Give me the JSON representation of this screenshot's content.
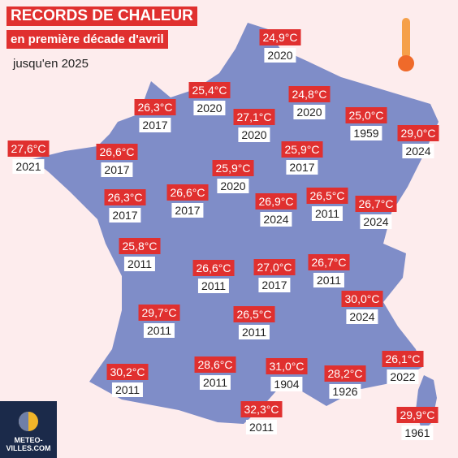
{
  "header": {
    "title": "RECORDS DE CHALEUR",
    "subtitle": "en première décade d'avril",
    "note": "jusqu'en 2025"
  },
  "records": [
    {
      "temp": "24,9°C",
      "year": "2020"
    },
    {
      "temp": "25,4°C",
      "year": "2020"
    },
    {
      "temp": "24,8°C",
      "year": "2020"
    },
    {
      "temp": "26,3°C",
      "year": "2017"
    },
    {
      "temp": "27,1°C",
      "year": "2020"
    },
    {
      "temp": "25,0°C",
      "year": "1959"
    },
    {
      "temp": "29,0°C",
      "year": "2024"
    },
    {
      "temp": "27,6°C",
      "year": "2021"
    },
    {
      "temp": "26,6°C",
      "year": "2017"
    },
    {
      "temp": "25,9°C",
      "year": "2017"
    },
    {
      "temp": "25,9°C",
      "year": "2020"
    },
    {
      "temp": "26,3°C",
      "year": "2017"
    },
    {
      "temp": "26,6°C",
      "year": "2017"
    },
    {
      "temp": "26,9°C",
      "year": "2024"
    },
    {
      "temp": "26,5°C",
      "year": "2011"
    },
    {
      "temp": "26,7°C",
      "year": "2024"
    },
    {
      "temp": "25,8°C",
      "year": "2011"
    },
    {
      "temp": "26,6°C",
      "year": "2011"
    },
    {
      "temp": "27,0°C",
      "year": "2017"
    },
    {
      "temp": "26,7°C",
      "year": "2011"
    },
    {
      "temp": "29,7°C",
      "year": "2011"
    },
    {
      "temp": "30,0°C",
      "year": "2024"
    },
    {
      "temp": "26,5°C",
      "year": "2011"
    },
    {
      "temp": "30,2°C",
      "year": "2011"
    },
    {
      "temp": "28,6°C",
      "year": "2011"
    },
    {
      "temp": "31,0°C",
      "year": "1904"
    },
    {
      "temp": "28,2°C",
      "year": "1926"
    },
    {
      "temp": "26,1°C",
      "year": "2022"
    },
    {
      "temp": "32,3°C",
      "year": "2011"
    },
    {
      "temp": "29,9°C",
      "year": "1961"
    }
  ],
  "logo": {
    "line1": "METEO-",
    "line2": "VILLES.COM"
  }
}
